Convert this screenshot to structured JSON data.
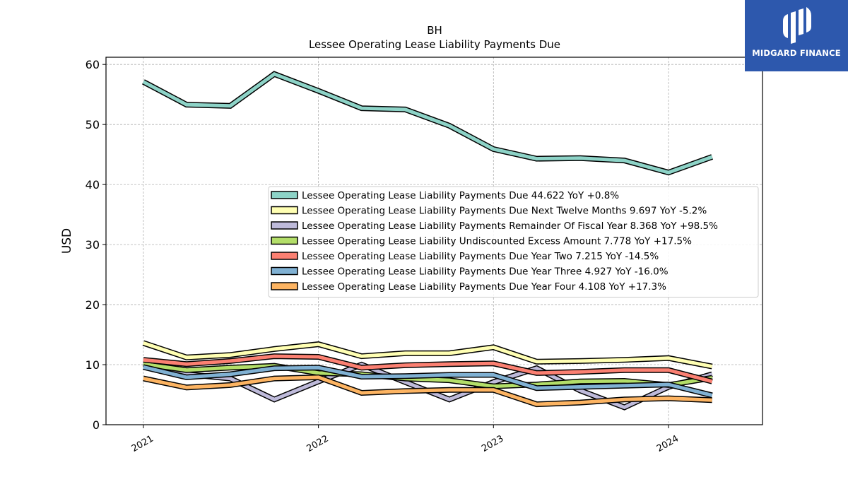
{
  "chart_data": {
    "type": "line",
    "title": "BH",
    "subtitle": "Lessee Operating Lease Liability Payments Due",
    "xlabel": "",
    "ylabel": "USD",
    "ylim": [
      0,
      61.2
    ],
    "yticks": [
      0,
      10,
      20,
      30,
      40,
      50,
      60
    ],
    "xticks": [
      "2021",
      "2022",
      "2023",
      "2024"
    ],
    "grid": true,
    "legend_position": "center-right",
    "x": [
      "2021-01-01",
      "2021-04-01",
      "2021-07-01",
      "2021-10-01",
      "2022-01-01",
      "2022-04-01",
      "2022-07-01",
      "2022-10-01",
      "2023-01-01",
      "2023-04-01",
      "2023-07-01",
      "2023-10-01",
      "2024-01-01",
      "2024-04-01"
    ],
    "series": [
      {
        "name": "Lessee Operating Lease Liability Payments Due  44.622 YoY +0.8%",
        "color": "#8dd3c7",
        "values": [
          57.1,
          53.3,
          53.1,
          58.4,
          55.6,
          52.7,
          52.5,
          49.8,
          45.9,
          44.3,
          44.4,
          44.0,
          42.0,
          44.6
        ]
      },
      {
        "name": "Lessee Operating Lease Liability Payments Due Next Twelve Months  9.697 YoY -5.2%",
        "color": "#ffffb3",
        "values": [
          13.6,
          11.2,
          11.6,
          12.6,
          13.4,
          11.4,
          11.9,
          11.9,
          12.9,
          10.5,
          10.6,
          10.8,
          11.1,
          9.7
        ]
      },
      {
        "name": "Lessee Operating Lease Liability Payments Remainder Of Fiscal Year  8.368 YoY +98.5%",
        "color": "#bebada",
        "values": [
          10.3,
          8.4,
          7.7,
          4.2,
          7.2,
          10.0,
          7.1,
          4.2,
          7.1,
          9.4,
          5.7,
          2.9,
          6.3,
          8.4
        ]
      },
      {
        "name": "Lessee Operating Lease Liability Undiscounted Excess Amount  7.778 YoY +17.5%",
        "color": "#b3de69",
        "values": [
          10.1,
          9.1,
          9.5,
          9.8,
          8.6,
          8.4,
          7.7,
          7.4,
          6.4,
          6.7,
          7.2,
          7.3,
          6.6,
          7.8
        ]
      },
      {
        "name": "Lessee Operating Lease Liability Payments Due Year Two  7.215 YoY -14.5%",
        "color": "#fb8072",
        "values": [
          10.8,
          10.1,
          10.6,
          11.4,
          11.3,
          9.5,
          9.9,
          10.1,
          10.2,
          8.6,
          8.8,
          9.1,
          9.1,
          7.2
        ]
      },
      {
        "name": "Lessee Operating Lease Liability Payments Due Year Three  4.927 YoY -16.0%",
        "color": "#80b1d3",
        "values": [
          9.6,
          7.9,
          8.4,
          9.4,
          9.5,
          8.0,
          8.1,
          8.3,
          8.3,
          6.1,
          6.3,
          6.5,
          6.7,
          4.9
        ]
      },
      {
        "name": "Lessee Operating Lease Liability Payments Due Year Four  4.108 YoY +17.3%",
        "color": "#fdb462",
        "values": [
          7.7,
          6.2,
          6.6,
          7.7,
          7.9,
          5.3,
          5.6,
          5.8,
          5.8,
          3.4,
          3.7,
          4.2,
          4.4,
          4.1
        ]
      }
    ]
  },
  "logo": {
    "text": "MIDGARD FINANCE",
    "background": "#2d58ad"
  }
}
